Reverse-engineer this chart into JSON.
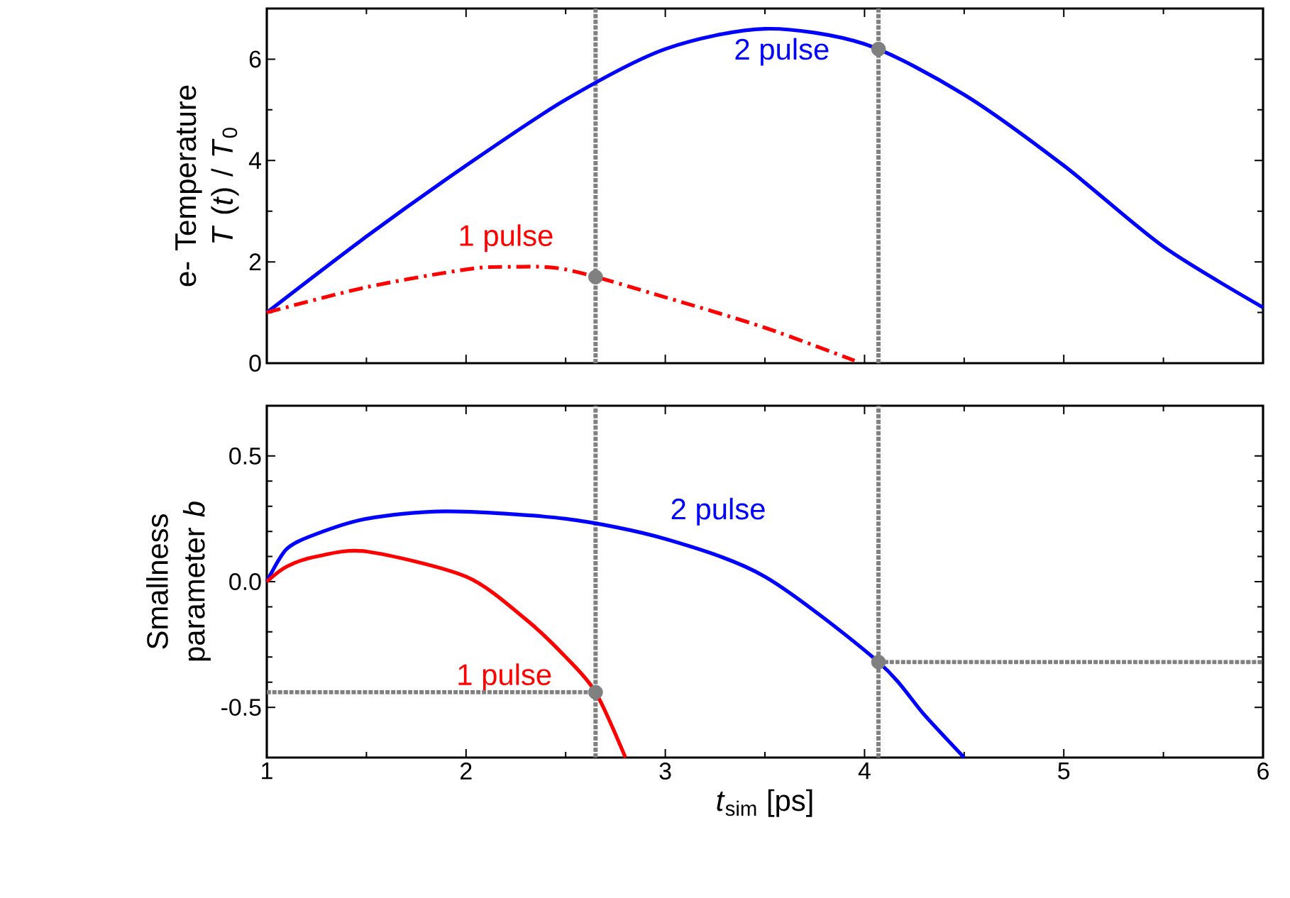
{
  "chart_data": [
    {
      "type": "line",
      "ylabel": "e- Temperature *T* (*t*) / *T*$_{0}$",
      "xlim": [
        1,
        6
      ],
      "ylim": [
        0,
        7
      ],
      "xticks": [
        1,
        2,
        3,
        4,
        5,
        6
      ],
      "yticks": [
        0,
        2,
        4,
        6
      ],
      "tick_labels": "y",
      "marker": "none",
      "series": [
        {
          "name": "2 pulse",
          "color": "#0000ff",
          "line_style": "solid",
          "x": [
            1,
            1.5,
            2,
            2.5,
            3,
            3.5,
            4,
            4.5,
            5,
            5.5,
            6
          ],
          "values": [
            1.0,
            2.5,
            3.9,
            5.2,
            6.2,
            6.6,
            6.3,
            5.3,
            3.9,
            2.3,
            1.1
          ]
        },
        {
          "name": "1 pulse",
          "color": "#ff0000",
          "line_style": "dashdot",
          "x": [
            1,
            1.5,
            2,
            2.2,
            2.5,
            3,
            3.5,
            3.95
          ],
          "values": [
            1.0,
            1.5,
            1.85,
            1.9,
            1.85,
            1.3,
            0.7,
            0.05
          ]
        },
        {
          "type": "scatter",
          "color": "#808080",
          "marker": "circle",
          "x": [
            2.65,
            4.07
          ],
          "values": [
            1.7,
            6.2
          ]
        }
      ],
      "ref_lines": [
        {
          "axis": "x",
          "value": 2.65,
          "color": "#808080",
          "line_style": "dotted"
        },
        {
          "axis": "x",
          "value": 4.07,
          "color": "#808080",
          "line_style": "dotted"
        }
      ]
    },
    {
      "type": "line",
      "ylabel": "Smallness parameter *b*",
      "xlabel": "*t*$_{sim}$ [ps]",
      "xlim": [
        1,
        6
      ],
      "ylim": [
        -0.7,
        0.7
      ],
      "xticks": [
        1,
        2,
        3,
        4,
        5,
        6
      ],
      "yticks": [
        {
          "value": -0.5,
          "label": "-0.5"
        },
        {
          "value": 0,
          "label": "0.0"
        },
        {
          "value": 0.5,
          "label": "0.5"
        }
      ],
      "marker": "none",
      "series": [
        {
          "name": "2 pulse",
          "color": "#0000ff",
          "line_style": "solid",
          "x": [
            1,
            1.1,
            1.25,
            1.5,
            1.9,
            2.5,
            3,
            3.5,
            4.07,
            4.3,
            4.5
          ],
          "values": [
            0,
            0.13,
            0.19,
            0.25,
            0.28,
            0.25,
            0.17,
            0.02,
            -0.32,
            -0.53,
            -0.7
          ]
        },
        {
          "name": "1 pulse",
          "color": "#ff0000",
          "line_style": "solid",
          "x": [
            1,
            1.1,
            1.25,
            1.5,
            2,
            2.3,
            2.5,
            2.65,
            2.8
          ],
          "values": [
            0,
            0.06,
            0.1,
            0.12,
            0.02,
            -0.15,
            -0.3,
            -0.44,
            -0.7
          ]
        },
        {
          "type": "line",
          "color": "#808080",
          "line_style": "dotted",
          "x": [
            1,
            2.65
          ],
          "values": [
            -0.44,
            -0.44
          ]
        },
        {
          "type": "line",
          "color": "#808080",
          "line_style": "dotted",
          "x": [
            4.07,
            6
          ],
          "values": [
            -0.32,
            -0.32
          ]
        },
        {
          "type": "scatter",
          "color": "#808080",
          "marker": "circle",
          "x": [
            2.65,
            4.07
          ],
          "values": [
            -0.44,
            -0.32
          ]
        }
      ],
      "ref_lines": [
        {
          "axis": "x",
          "value": 2.65,
          "color": "#808080",
          "line_style": "dotted"
        },
        {
          "axis": "x",
          "value": 4.07,
          "color": "#808080",
          "line_style": "dotted"
        }
      ]
    }
  ]
}
